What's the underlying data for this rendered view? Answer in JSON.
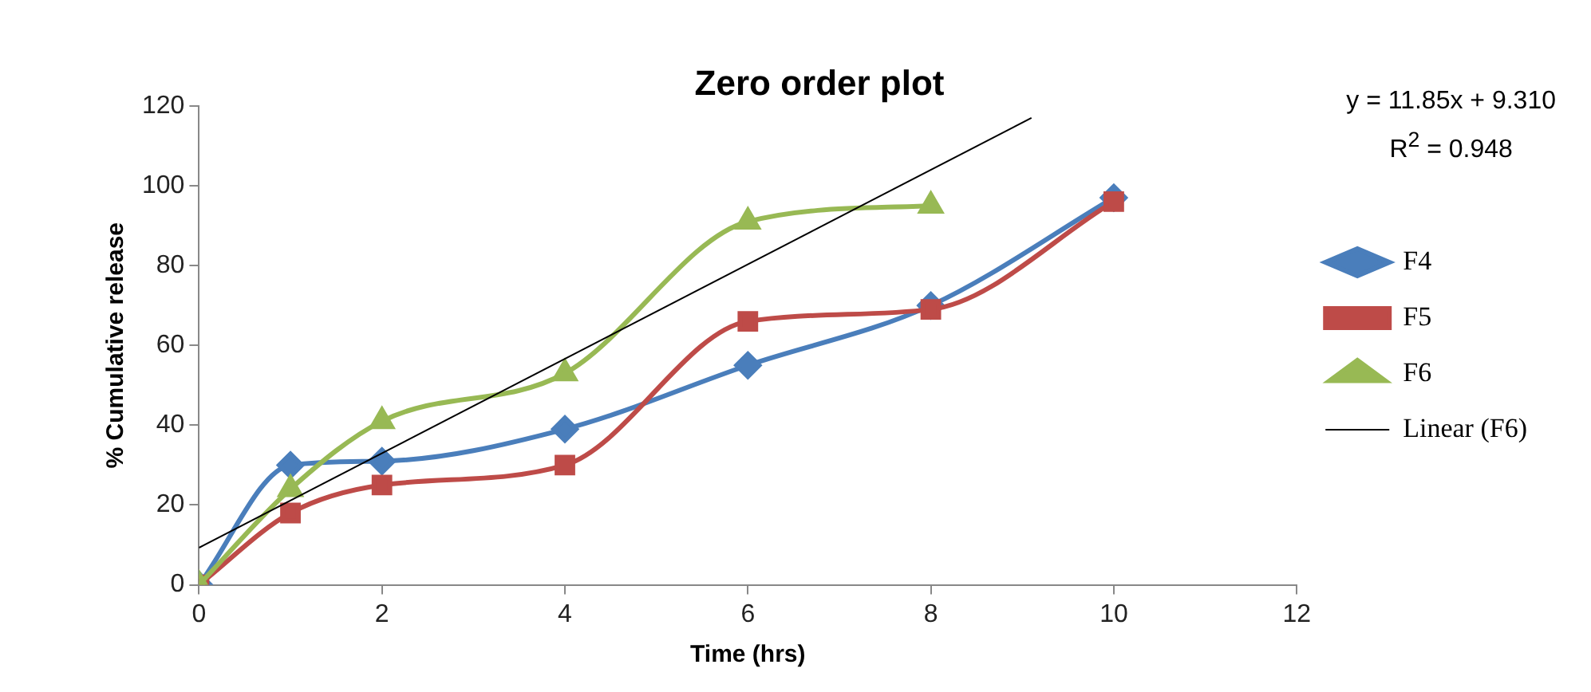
{
  "chart_data": {
    "type": "line",
    "title": "Zero order plot",
    "xlabel": "Time (hrs)",
    "ylabel": "% Cumulative release",
    "xlim": [
      0,
      12
    ],
    "xticks": [
      0,
      2,
      4,
      6,
      8,
      10,
      12
    ],
    "ylim": [
      0,
      120
    ],
    "yticks": [
      0,
      20,
      40,
      60,
      80,
      100,
      120
    ],
    "grid": false,
    "legend": "right",
    "line_style": "solid",
    "annotations": [
      "y = 11.85x + 9.310",
      "R$^{2}$ = 0.948"
    ],
    "series": [
      {
        "name": "F4",
        "color": "#4a7ebb",
        "marker": "diamond",
        "x": [
          0,
          1,
          2,
          4,
          6,
          8,
          10
        ],
        "values": [
          0,
          30,
          31,
          39,
          55,
          70,
          97
        ]
      },
      {
        "name": "F5",
        "color": "#be4b48",
        "marker": "square",
        "x": [
          0,
          1,
          2,
          4,
          6,
          8,
          10
        ],
        "values": [
          0,
          18,
          25,
          30,
          66,
          69,
          96
        ]
      },
      {
        "name": "F6",
        "color": "#98b954",
        "marker": "triangle",
        "x": [
          0,
          1,
          2,
          4,
          6,
          8
        ],
        "values": [
          0,
          24,
          41,
          53,
          91,
          95
        ]
      },
      {
        "name": "Linear (F6)",
        "color": "#000000",
        "marker": "none",
        "x": [
          0,
          9.1
        ],
        "values": [
          9.3,
          117
        ]
      }
    ]
  }
}
